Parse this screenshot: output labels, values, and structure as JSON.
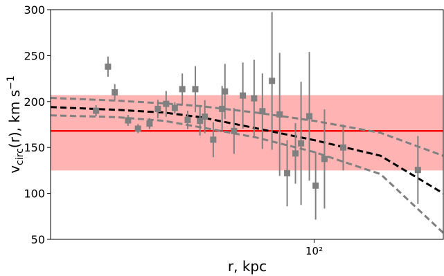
{
  "chart_data": {
    "type": "scatter",
    "xlabel": "r, kpc",
    "ylabel": [
      "v",
      "circ",
      "(r), km s",
      "−1"
    ],
    "xlim": [
      20,
      220
    ],
    "xscale": "log",
    "xticks": [
      {
        "value": 100,
        "label": "10²"
      }
    ],
    "ylim": [
      50,
      300
    ],
    "yticks": [
      50,
      100,
      150,
      200,
      250,
      300
    ],
    "band": {
      "range": [
        125,
        207
      ],
      "color": "#ffb3b3"
    },
    "hline": {
      "value": 168,
      "color": "#ff0000"
    },
    "curves": [
      {
        "color": "#808080",
        "x": [
          20,
          30,
          40,
          50,
          70,
          100,
          150,
          220
        ],
        "values": [
          204,
          201,
          198,
          195,
          188,
          179,
          166,
          141
        ]
      },
      {
        "color": "#808080",
        "x": [
          20,
          30,
          40,
          50,
          70,
          100,
          150,
          220
        ],
        "values": [
          185,
          183,
          179,
          172,
          161,
          145,
          121,
          57
        ]
      },
      {
        "color": "#000000",
        "x": [
          20,
          30,
          40,
          50,
          70,
          100,
          150,
          220
        ],
        "values": [
          194,
          191,
          188,
          183,
          171,
          158,
          141,
          100
        ]
      }
    ],
    "points": {
      "color": "#808080",
      "x": [
        26.4,
        28.4,
        29.6,
        32.1,
        34.1,
        36.6,
        38.5,
        40.5,
        42.7,
        44.7,
        46.2,
        48.4,
        49.8,
        51.3,
        54.0,
        57.0,
        58.0,
        61.3,
        64.7,
        69.3,
        72.9,
        77.3,
        81.0,
        84.8,
        89.2,
        92.3,
        97.1,
        100.9,
        106.5,
        119.4,
        188.4
      ],
      "values": [
        190,
        238,
        210,
        179.5,
        170.5,
        176,
        192,
        197.5,
        193,
        213.5,
        180,
        213.5,
        179,
        183.5,
        158.5,
        192,
        211,
        168,
        206.5,
        203.5,
        189.5,
        222.5,
        186,
        122,
        143.5,
        154.5,
        184,
        108.5,
        137.5,
        150,
        125.5
      ],
      "errors": [
        6,
        11,
        9,
        6,
        5,
        6,
        10,
        14,
        6,
        17,
        10,
        25,
        16,
        18,
        19,
        25,
        30,
        25,
        36,
        42,
        41,
        75,
        67,
        36,
        33,
        67,
        70,
        37,
        54,
        25,
        37
      ]
    }
  }
}
